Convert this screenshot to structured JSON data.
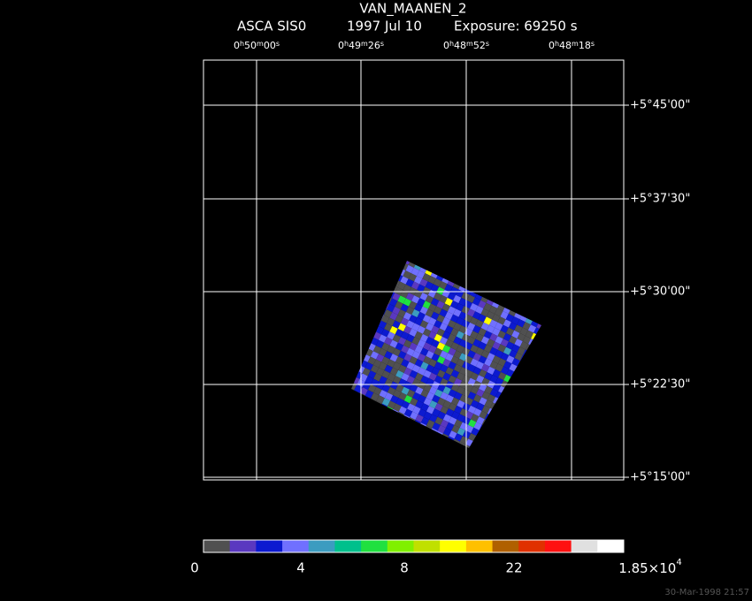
{
  "header": {
    "title": "VAN_MAANEN_2",
    "instrument": "ASCA SIS0",
    "date": "1997 Jul 10",
    "exposure": "Exposure: 69250 s"
  },
  "ra_units": [
    "h",
    "m",
    "s"
  ],
  "ra_labels": [
    [
      "0",
      "50",
      "00"
    ],
    [
      "0",
      "49",
      "26"
    ],
    [
      "0",
      "48",
      "52"
    ],
    [
      "0",
      "48",
      "18"
    ]
  ],
  "dec_labels": [
    "+5°45'00\"",
    "+5°37'30\"",
    "+5°30'00\"",
    "+5°22'30\"",
    "+5°15'00\""
  ],
  "colorbar": {
    "colors": [
      "#505050",
      "#5a38c0",
      "#0c1ad0",
      "#7070ff",
      "#3c9cc0",
      "#00c08c",
      "#20e040",
      "#80f000",
      "#c0e000",
      "#ffff00",
      "#ffc000",
      "#b06000",
      "#e03000",
      "#ff1010",
      "#e0e0e0",
      "#ffffff"
    ],
    "labels": [
      "0",
      "4",
      "8",
      "22"
    ],
    "max_label": {
      "mantissa": "1.85×10",
      "exponent": "4"
    }
  },
  "timestamp": "30-Mar-1998 21:57"
}
